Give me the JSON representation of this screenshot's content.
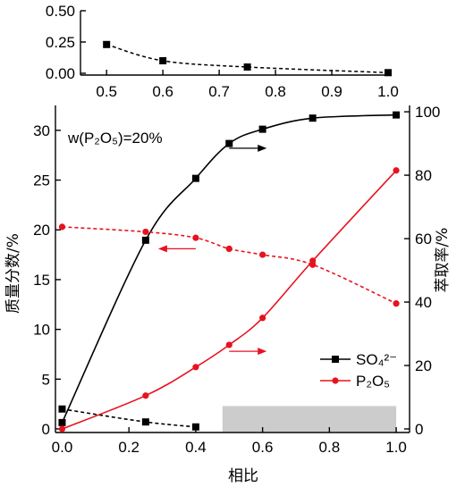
{
  "chart_data": [
    {
      "type": "line",
      "panel": "inset-top",
      "x_ticks": [
        0.5,
        0.6,
        0.7,
        0.8,
        0.9,
        1.0
      ],
      "y_ticks": [
        "0.00",
        "0.25",
        "0.50"
      ],
      "xlim": [
        0.46,
        1.0
      ],
      "ylim": [
        0,
        0.5
      ],
      "series": [
        {
          "color": "#000000",
          "dash": "dashed",
          "marker": "square",
          "x": [
            0.5,
            0.6,
            0.75,
            1.0
          ],
          "y": [
            0.23,
            0.1,
            0.05,
            0.005
          ]
        }
      ]
    },
    {
      "type": "line",
      "panel": "main",
      "xlabel": "相比",
      "ylabel": "质量分数/%",
      "y2label": "萃取率/%",
      "annotation": "w(P₂O₅)=20%",
      "x_ticks": [
        "0.0",
        "0.2",
        "0.4",
        "0.6",
        "0.8",
        "1.0"
      ],
      "y_ticks": [
        0,
        5,
        10,
        15,
        20,
        25,
        30
      ],
      "y2_ticks": [
        0,
        20,
        40,
        60,
        80,
        100
      ],
      "xlim": [
        -0.02,
        1.04
      ],
      "ylim": [
        0,
        32.5
      ],
      "y2lim": [
        0,
        102
      ],
      "legend": [
        {
          "label": "SO₄²⁻",
          "color": "#000000",
          "marker": "square"
        },
        {
          "label": "P₂O₅",
          "color": "#e8121f",
          "marker": "circle"
        }
      ],
      "series": [
        {
          "color": "#000000",
          "dash": "solid",
          "marker": "square",
          "axis": "right",
          "x": [
            0.0,
            0.25,
            0.4,
            0.5,
            0.6,
            0.75,
            1.0
          ],
          "y": [
            2,
            59.5,
            79,
            90,
            94.5,
            98,
            99
          ]
        },
        {
          "color": "#000000",
          "dash": "dashed",
          "marker": "square",
          "axis": "left",
          "x": [
            0.0,
            0.25,
            0.4
          ],
          "y": [
            2.0,
            0.7,
            0.2
          ]
        },
        {
          "color": "#e8121f",
          "dash": "solid",
          "marker": "circle",
          "axis": "right",
          "x": [
            0.0,
            0.25,
            0.4,
            0.5,
            0.6,
            0.75,
            1.0
          ],
          "y": [
            0,
            10.5,
            19.5,
            26.5,
            35,
            53,
            81.5
          ]
        },
        {
          "color": "#e8121f",
          "dash": "dashed",
          "marker": "circle",
          "axis": "left",
          "x": [
            0.0,
            0.25,
            0.4,
            0.5,
            0.6,
            0.75,
            1.0
          ],
          "y": [
            20.3,
            19.8,
            19.2,
            18.1,
            17.5,
            16.5,
            12.6
          ]
        }
      ],
      "arrows": [
        {
          "x": 0.5,
          "y": 28.2,
          "dir": "right",
          "color": "#000000"
        },
        {
          "x": 0.4,
          "y": 18.1,
          "dir": "left",
          "color": "#e8121f"
        },
        {
          "x": 0.5,
          "y": 7.8,
          "dir": "right",
          "color": "#e8121f"
        }
      ],
      "shaded_box": {
        "x": [
          0.48,
          1.0
        ],
        "y": [
          0,
          2.3
        ],
        "color": "#cccccc"
      }
    }
  ]
}
